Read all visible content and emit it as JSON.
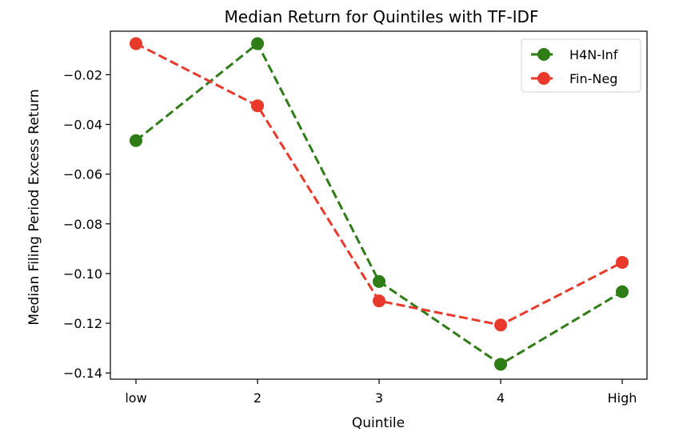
{
  "chart_data": {
    "type": "line",
    "title": "Median Return for Quintiles with TF-IDF",
    "xlabel": "Quintile",
    "ylabel": "Median Filing Period Excess Return",
    "categories": [
      "low",
      "2",
      "3",
      "4",
      "High"
    ],
    "ylim": [
      -0.1425,
      -0.0025
    ],
    "yticks": [
      -0.14,
      -0.12,
      -0.1,
      -0.08,
      -0.06,
      -0.04,
      -0.02
    ],
    "ytick_labels": [
      "−0.14",
      "−0.12",
      "−0.10",
      "−0.08",
      "−0.06",
      "−0.04",
      "−0.02"
    ],
    "grid": false,
    "legend_position": "top-right",
    "series": [
      {
        "name": "H4N-Inf",
        "color": "#2e7d17",
        "line_style": "dashed",
        "marker": "circle",
        "values": [
          -0.0465,
          -0.0075,
          -0.1032,
          -0.1365,
          -0.1073
        ]
      },
      {
        "name": "Fin-Neg",
        "color": "#e8392b",
        "line_style": "dashed",
        "marker": "circle",
        "values": [
          -0.0075,
          -0.0325,
          -0.111,
          -0.1207,
          -0.0955
        ]
      }
    ]
  }
}
